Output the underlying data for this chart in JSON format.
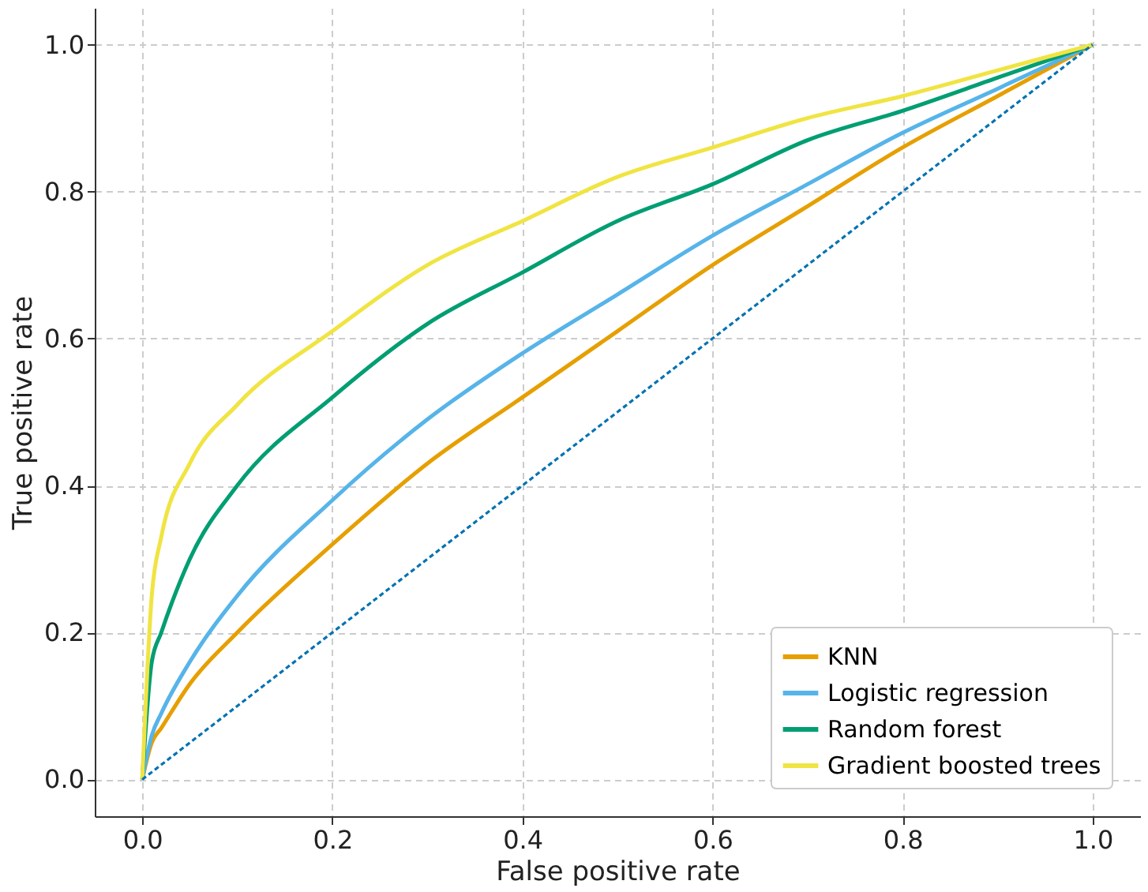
{
  "chart_data": {
    "type": "line",
    "xlabel": "False positive rate",
    "ylabel": "True positive rate",
    "x": [
      0,
      0.01,
      0.02,
      0.05,
      0.1,
      0.2,
      0.3,
      0.4,
      0.5,
      0.6,
      0.7,
      0.8,
      0.9,
      1
    ],
    "series": [
      {
        "name": "KNN",
        "color": "#e69f00",
        "values": [
          0,
          0.05,
          0.07,
          0.13,
          0.2,
          0.32,
          0.43,
          0.52,
          0.61,
          0.7,
          0.78,
          0.86,
          0.93,
          1
        ]
      },
      {
        "name": "Logistic regression",
        "color": "#56b4e9",
        "values": [
          0,
          0.06,
          0.09,
          0.16,
          0.25,
          0.38,
          0.49,
          0.58,
          0.66,
          0.74,
          0.81,
          0.88,
          0.94,
          1
        ]
      },
      {
        "name": "Random forest",
        "color": "#009e73",
        "values": [
          0,
          0.16,
          0.2,
          0.3,
          0.4,
          0.52,
          0.62,
          0.69,
          0.76,
          0.81,
          0.87,
          0.91,
          0.955,
          1
        ]
      },
      {
        "name": "Gradient boosted trees",
        "color": "#f0e442",
        "values": [
          0,
          0.25,
          0.33,
          0.43,
          0.51,
          0.61,
          0.7,
          0.76,
          0.82,
          0.86,
          0.9,
          0.93,
          0.965,
          1
        ]
      },
      {
        "x": [
          0,
          1
        ],
        "values": [
          0,
          1
        ],
        "color": "#0072b2",
        "line_style": "dashed"
      }
    ],
    "xlim": [
      -0.05,
      1.05
    ],
    "ylim": [
      -0.05,
      1.05
    ],
    "xticks": [
      {
        "value": 0,
        "label": "0.0"
      },
      0.2,
      0.4,
      0.6,
      0.8,
      {
        "value": 1,
        "label": "1.0"
      }
    ],
    "yticks": [
      {
        "value": 0,
        "label": "0.0"
      },
      0.2,
      0.4,
      0.6,
      0.8,
      {
        "value": 1,
        "label": "1.0"
      }
    ],
    "grid": true,
    "legend": "bottom right",
    "marker": "none",
    "line_style": "solid"
  }
}
